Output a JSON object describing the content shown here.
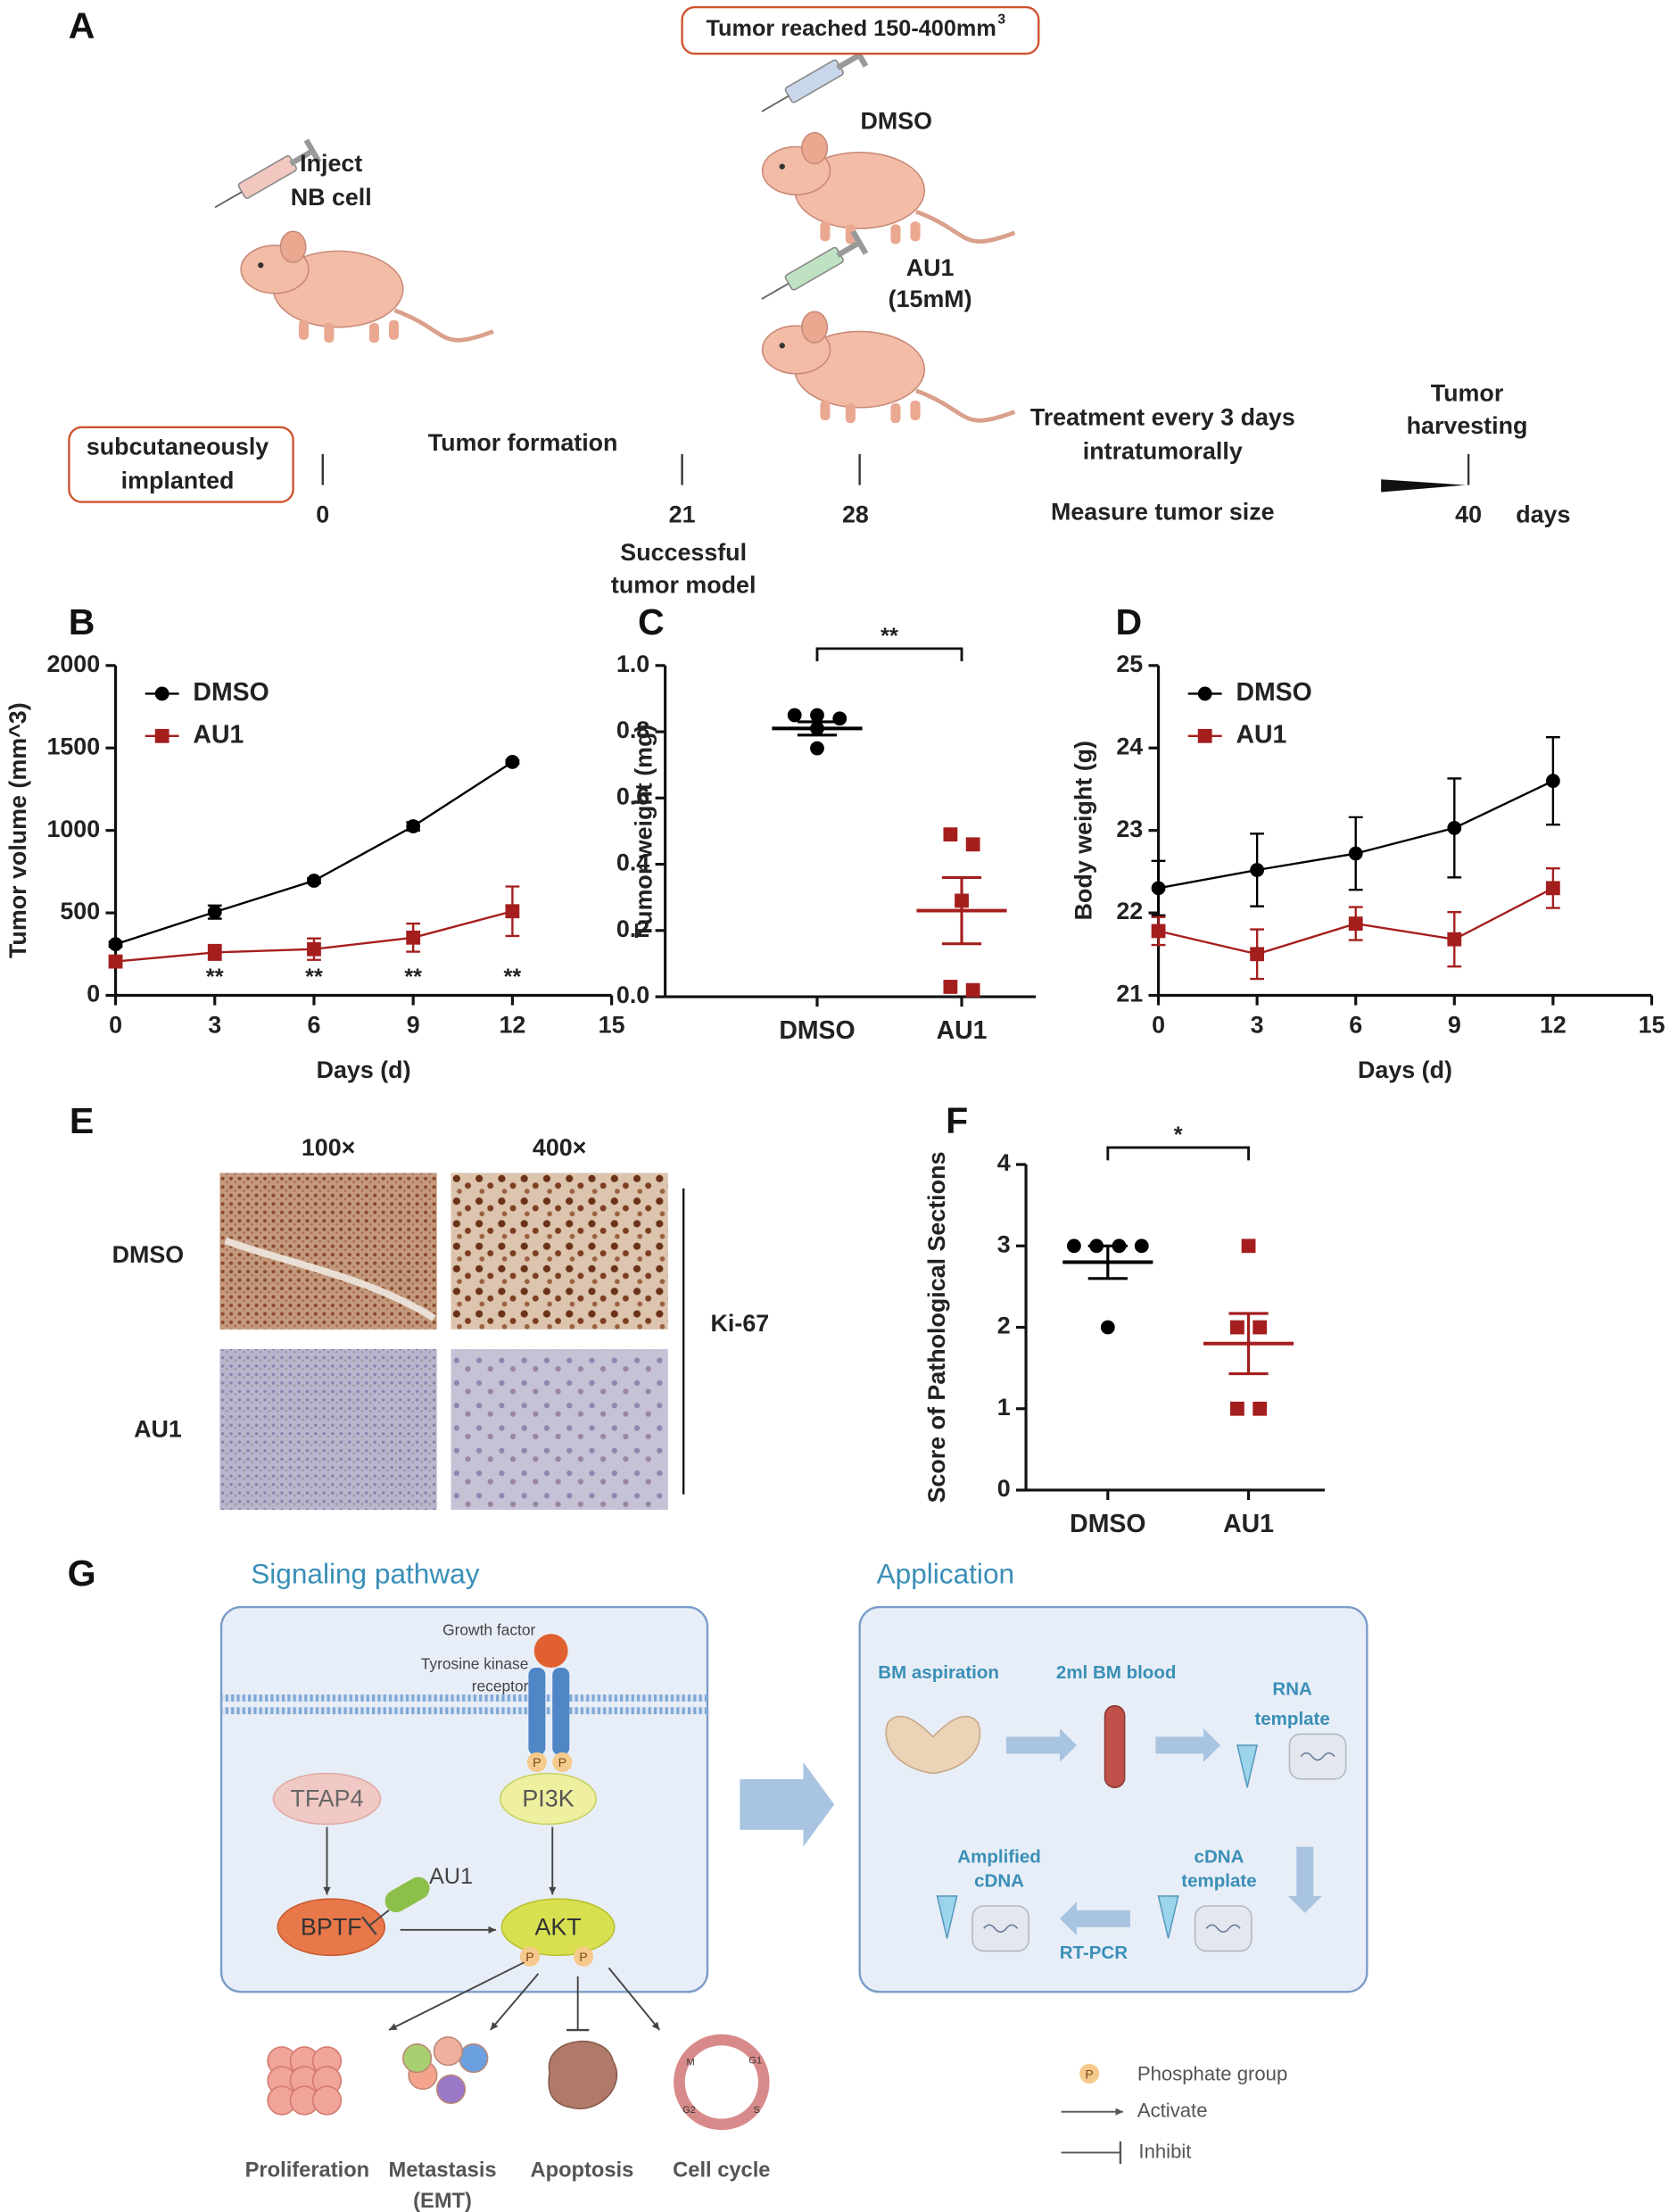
{
  "panel_labels": [
    "A",
    "B",
    "C",
    "D",
    "E",
    "F",
    "G"
  ],
  "panel_a": {
    "banner": "Tumor reached 150-400mm",
    "banner_sup": "3",
    "inject": [
      "Inject",
      "NB cell"
    ],
    "dmso": "DMSO",
    "au1": [
      "AU1",
      "(15mM)"
    ],
    "implant": [
      "subcutaneously",
      "implanted"
    ],
    "formation": "Tumor formation",
    "treatment": [
      "Treatment every 3 days",
      "intratumorally"
    ],
    "harvest": [
      "Tumor",
      "harvesting"
    ],
    "measure": "Measure tumor size",
    "model": [
      "Successful",
      "tumor model"
    ],
    "timeline": [
      "0",
      "21",
      "28",
      "40"
    ],
    "unit": "days"
  },
  "chart_data": [
    {
      "type": "line",
      "xlabel": "Days (d)",
      "ylabel": "Tumor volume (mm^3)",
      "x": [
        0,
        3,
        6,
        9,
        12
      ],
      "xlim": [
        0,
        15
      ],
      "xticks": [
        0,
        3,
        6,
        9,
        12,
        15
      ],
      "ylim": [
        0,
        2000
      ],
      "yticks": [
        0,
        500,
        1000,
        1500,
        2000
      ],
      "legend": "upper left",
      "series": [
        {
          "name": "DMSO",
          "color": "#000000",
          "marker": "circle",
          "values": [
            310,
            505,
            695,
            1025,
            1415
          ],
          "errors": [
            15,
            40,
            15,
            25,
            10
          ]
        },
        {
          "name": "AU1",
          "color": "#a51e1e",
          "marker": "square",
          "values": [
            205,
            260,
            280,
            350,
            510
          ],
          "errors": [
            25,
            45,
            65,
            85,
            150
          ]
        }
      ],
      "annotations": [
        {
          "x": 3,
          "text": "**"
        },
        {
          "x": 6,
          "text": "**"
        },
        {
          "x": 9,
          "text": "**"
        },
        {
          "x": 12,
          "text": "**"
        }
      ]
    },
    {
      "type": "dot",
      "ylabel": "Tumor weight (mg)",
      "categories": [
        "DMSO",
        "AU1"
      ],
      "ylim": [
        0,
        1
      ],
      "yticks": [
        {
          "value": 0,
          "label": "0.0"
        },
        0.2,
        0.4,
        0.6,
        0.8,
        {
          "value": 1,
          "label": "1.0"
        }
      ],
      "groups": [
        {
          "color": "#000000",
          "marker": "circle",
          "values": [
            0.85,
            0.85,
            0.84,
            0.81,
            0.75
          ],
          "mean": 0.81,
          "sem": 0.02
        },
        {
          "color": "#a51e1e",
          "marker": "square",
          "values": [
            0.49,
            0.46,
            0.29,
            0.03,
            0.02
          ],
          "mean": 0.26,
          "sem": 0.1
        }
      ],
      "significance": "**"
    },
    {
      "type": "line",
      "xlabel": "Days (d)",
      "ylabel": "Body weight (g)",
      "x": [
        0,
        3,
        6,
        9,
        12
      ],
      "xlim": [
        0,
        15
      ],
      "xticks": [
        0,
        3,
        6,
        9,
        12,
        15
      ],
      "ylim": [
        21,
        25
      ],
      "yticks": [
        21,
        22,
        23,
        24,
        25
      ],
      "legend": "upper left",
      "series": [
        {
          "name": "DMSO",
          "color": "#000000",
          "marker": "circle",
          "values": [
            22.3,
            22.52,
            22.72,
            23.03,
            23.6
          ],
          "errors": [
            0.33,
            0.44,
            0.44,
            0.6,
            0.53
          ]
        },
        {
          "name": "AU1",
          "color": "#a51e1e",
          "marker": "square",
          "values": [
            21.78,
            21.5,
            21.87,
            21.68,
            22.3
          ],
          "errors": [
            0.17,
            0.3,
            0.2,
            0.33,
            0.24
          ]
        }
      ]
    },
    {
      "type": "dot",
      "ylabel": "Score of Pathological Sections",
      "categories": [
        "DMSO",
        "AU1"
      ],
      "ylim": [
        0,
        4
      ],
      "yticks": [
        0,
        1,
        2,
        3,
        4
      ],
      "groups": [
        {
          "color": "#000000",
          "marker": "circle",
          "values": [
            3,
            3,
            3,
            3,
            2
          ],
          "mean": 2.8,
          "sem": 0.2
        },
        {
          "color": "#a51e1e",
          "marker": "square",
          "values": [
            3,
            2,
            2,
            1,
            1
          ],
          "mean": 1.8,
          "sem": 0.37
        }
      ],
      "significance": "*"
    }
  ],
  "panel_e": {
    "magnifications": [
      "100×",
      "400×"
    ],
    "rows": [
      "DMSO",
      "AU1"
    ],
    "stain": "Ki-67"
  },
  "panel_g": {
    "left_title": "Signaling pathway",
    "right_title": "Application",
    "growth_factor": "Growth factor",
    "receptor": [
      "Tyrosine kinase",
      "receptor"
    ],
    "phospho": "P",
    "pi3k": "PI3K",
    "tfap4": "TFAP4",
    "au1": "AU1",
    "bptf": "BPTF",
    "akt": "AKT",
    "outcomes": [
      [
        "Proliferation"
      ],
      [
        "Metastasis",
        "(EMT)"
      ],
      [
        "Apoptosis"
      ],
      [
        "Cell cycle"
      ]
    ],
    "cycle_phases": [
      "M",
      "G1",
      "S",
      "G2"
    ],
    "bm_aspiration": "BM aspiration",
    "bm_blood": "2ml BM blood",
    "rna": [
      "RNA",
      "template"
    ],
    "amplified": [
      "Amplified",
      "cDNA"
    ],
    "cdna": [
      "cDNA",
      "template"
    ],
    "rtpcr": "RT-PCR",
    "legend": [
      "Phosphate group",
      "Activate",
      "Inhibit"
    ]
  }
}
